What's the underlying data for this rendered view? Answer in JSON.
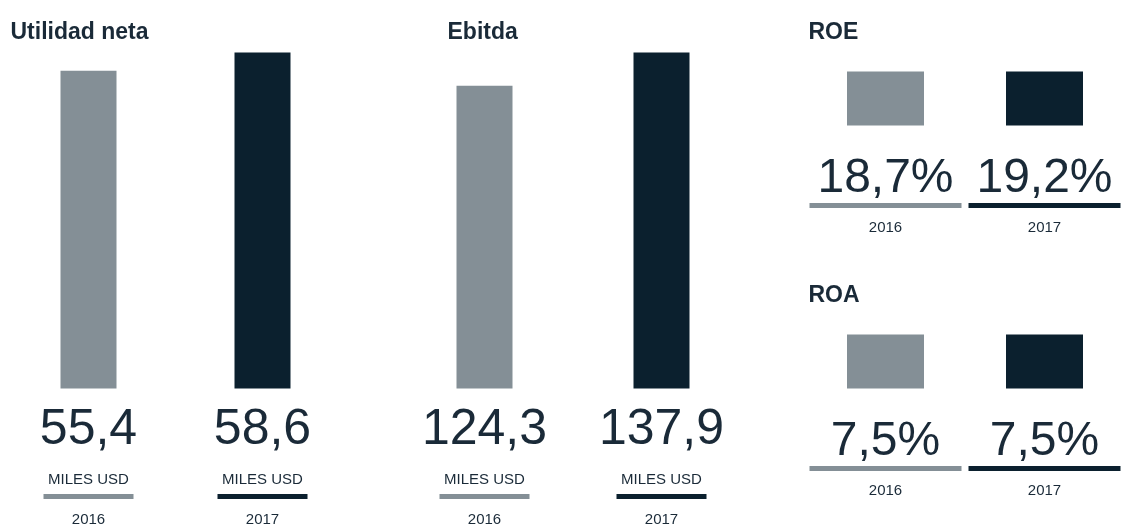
{
  "chart_data": [
    {
      "type": "bar",
      "title": "Utilidad neta",
      "categories": [
        "2016",
        "2017"
      ],
      "values": [
        55.4,
        58.6
      ],
      "value_labels": [
        "55,4",
        "58,6"
      ],
      "colors": [
        "#848f96",
        "#0b202e"
      ],
      "annotations": [
        "MILES USD",
        "MILES USD"
      ]
    },
    {
      "type": "bar",
      "title": "Ebitda",
      "categories": [
        "2016",
        "2017"
      ],
      "values": [
        124.3,
        137.9
      ],
      "value_labels": [
        "124,3",
        "137,9"
      ],
      "colors": [
        "#848f96",
        "#0b202e"
      ],
      "annotations": [
        "MILES USD",
        "MILES USD"
      ]
    },
    {
      "type": "other",
      "title": "ROE",
      "categories": [
        "2016",
        "2017"
      ],
      "values": [
        18.7,
        19.2
      ],
      "value_labels": [
        "18,7%",
        "19,2%"
      ],
      "colors": [
        "#848f96",
        "#0b202e"
      ]
    },
    {
      "type": "other",
      "title": "ROA",
      "categories": [
        "2016",
        "2017"
      ],
      "values": [
        7.5,
        7.5
      ],
      "value_labels": [
        "7,5%",
        "7,5%"
      ],
      "colors": [
        "#848f96",
        "#0b202e"
      ]
    }
  ]
}
